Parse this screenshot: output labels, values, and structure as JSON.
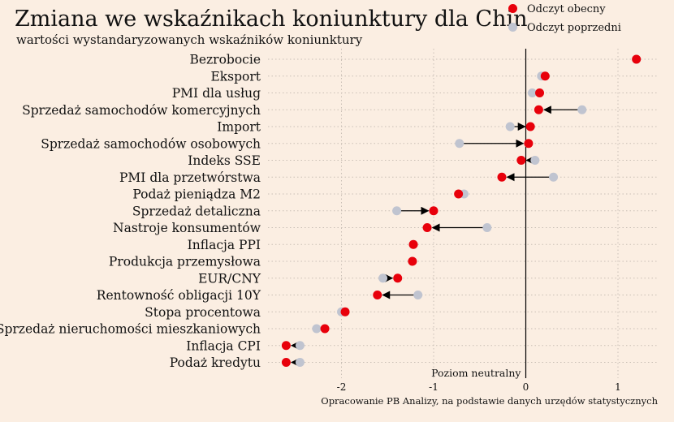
{
  "title": "Zmiana we wskaźnikach koniunktury dla Chin",
  "subtitle": "wartości wystandaryzowanych wskaźników koniunktury",
  "source": "Opracowanie PB Analizy, na podstawie danych urzędów statystycznych",
  "colors": {
    "current": "#e8000b",
    "previous": "#c0c4d0",
    "background": "#fbeee2"
  },
  "chart_data": {
    "type": "scatter",
    "series": [
      {
        "name": "Odczyt obecny",
        "key": "current"
      },
      {
        "name": "Odczyt poprzedni",
        "key": "previous"
      }
    ],
    "categories": [
      "Bezrobocie",
      "Eksport",
      "PMI dla usług",
      "Sprzedaż samochodów komercyjnych",
      "Import",
      "Sprzedaż samochodów osobowych",
      "Indeks SSE",
      "PMI dla przetwórstwa",
      "Podaż pieniądza M2",
      "Sprzedaż detaliczna",
      "Nastroje konsumentów",
      "Inflacja PPI",
      "Produkcja przemysłowa",
      "EUR/CNY",
      "Rentowność obligacji 10Y",
      "Stopa procentowa",
      "Sprzedaż nieruchomości mieszkaniowych",
      "Inflacja CPI",
      "Podaż kredytu"
    ],
    "current": [
      1.2,
      0.21,
      0.15,
      0.14,
      0.05,
      0.03,
      -0.05,
      -0.26,
      -0.73,
      -1.0,
      -1.07,
      -1.22,
      -1.23,
      -1.39,
      -1.61,
      -1.96,
      -2.18,
      -2.6,
      -2.6
    ],
    "previous": [
      1.2,
      0.17,
      0.07,
      0.61,
      -0.17,
      -0.72,
      0.1,
      0.3,
      -0.67,
      -1.4,
      -0.42,
      -1.22,
      -1.23,
      -1.55,
      -1.17,
      -2.0,
      -2.27,
      -2.45,
      -2.45
    ],
    "xticks": [
      -2,
      -1,
      0,
      1
    ],
    "xlim": [
      -2.85,
      1.45
    ],
    "neutral_label": "Poziom neutralny",
    "legend_position": "top-right",
    "grid": true
  }
}
